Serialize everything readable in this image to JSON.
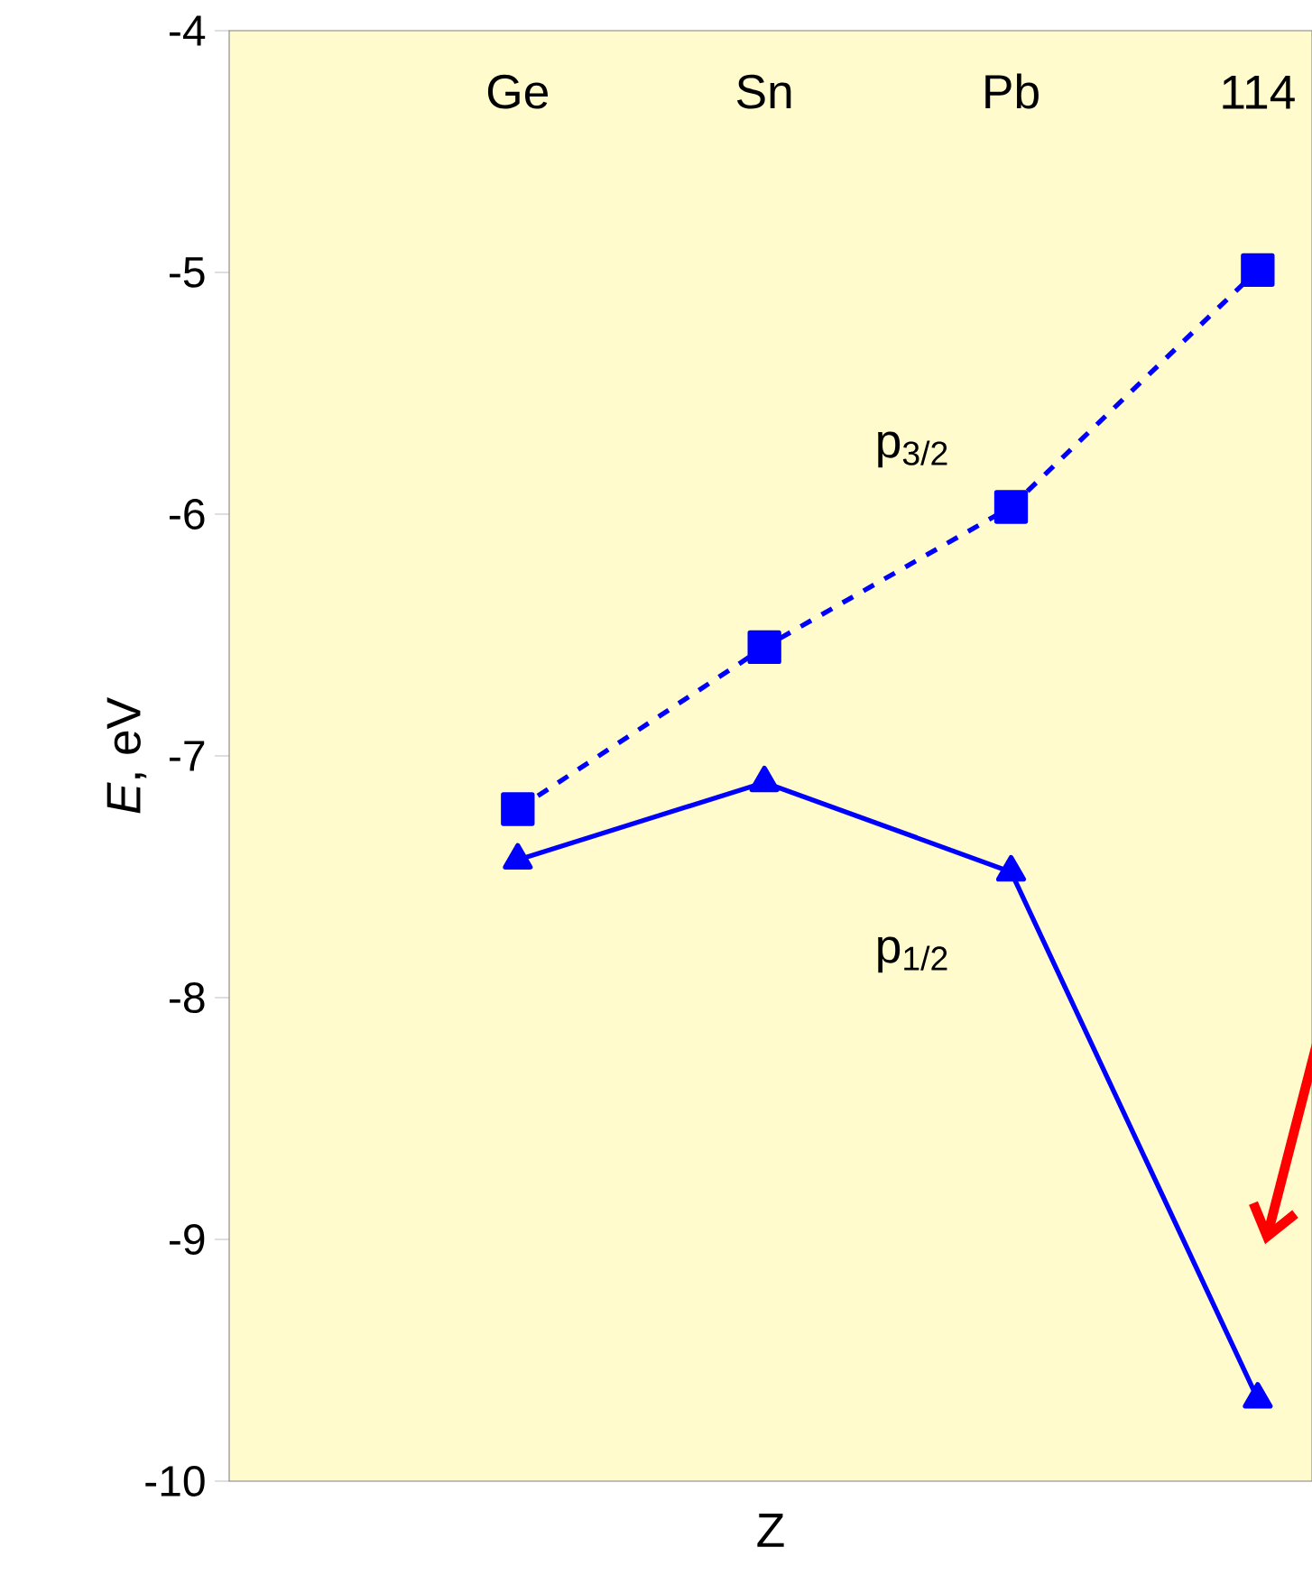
{
  "chart_data": {
    "type": "line",
    "xlabel": "Z",
    "ylabel": "*E*, eV",
    "categories": [
      "Ge",
      "Sn",
      "Pb",
      "114"
    ],
    "ylim": [
      -10,
      -4
    ],
    "yticks": [
      -10,
      -9,
      -8,
      -7,
      -6,
      -5,
      -4
    ],
    "series": [
      {
        "name": "p$_{3/2}$",
        "color": "#0000ff",
        "marker": "square",
        "line_style": "dashed",
        "values": [
          -7.22,
          -6.55,
          -5.97,
          -4.99
        ]
      },
      {
        "name": "p$_{1/2}$",
        "color": "#0000ff",
        "marker": "triangle",
        "line_style": "solid",
        "values": [
          -7.43,
          -7.11,
          -7.48,
          -9.66
        ]
      }
    ]
  }
}
